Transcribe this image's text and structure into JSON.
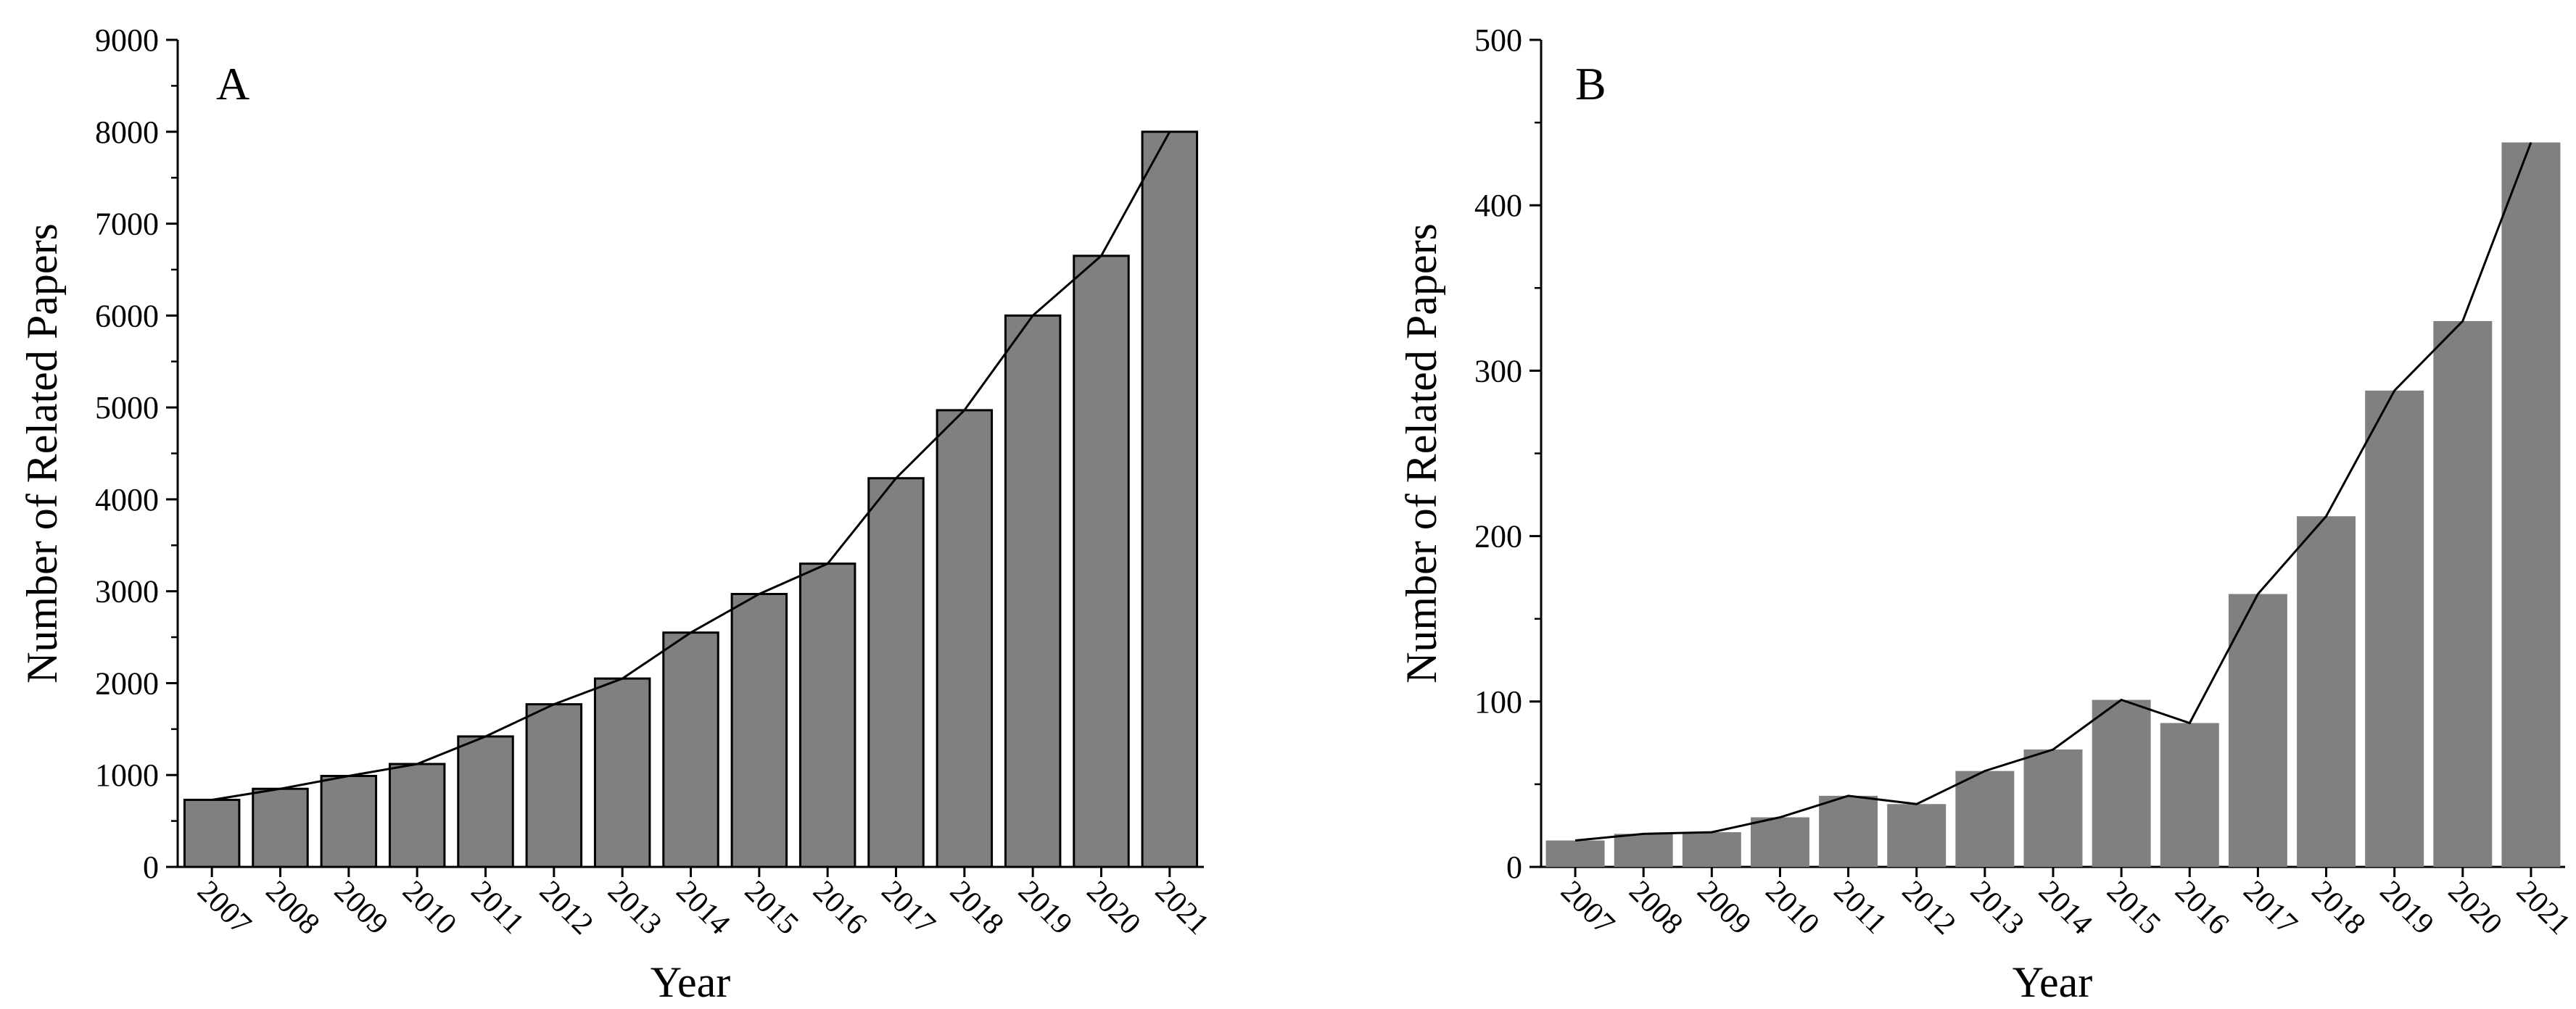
{
  "chart_data": [
    {
      "type": "bar",
      "panel_label": "A",
      "categories": [
        "2007",
        "2008",
        "2009",
        "2010",
        "2011",
        "2012",
        "2013",
        "2014",
        "2015",
        "2016",
        "2017",
        "2018",
        "2019",
        "2020",
        "2021"
      ],
      "values": [
        730,
        850,
        990,
        1120,
        1420,
        1770,
        2050,
        2550,
        2970,
        3300,
        4230,
        4970,
        6000,
        6650,
        8000
      ],
      "overlay_line": true,
      "xlabel": "Year",
      "ylabel": "Number of Related Papers",
      "ylim": [
        0,
        9000
      ],
      "yticks": [
        0,
        1000,
        2000,
        3000,
        4000,
        5000,
        6000,
        7000,
        8000,
        9000
      ],
      "bar_color": "#808080",
      "bar_edge_color": "#000000",
      "line_color": "#000000",
      "grid": false
    },
    {
      "type": "bar",
      "panel_label": "B",
      "categories": [
        "2007",
        "2008",
        "2009",
        "2010",
        "2011",
        "2012",
        "2013",
        "2014",
        "2015",
        "2016",
        "2017",
        "2018",
        "2019",
        "2020",
        "2021"
      ],
      "values": [
        16,
        20,
        21,
        30,
        43,
        38,
        58,
        71,
        101,
        87,
        165,
        212,
        288,
        330,
        438
      ],
      "overlay_line": true,
      "xlabel": "Year",
      "ylabel": "Number of Related Papers",
      "ylim": [
        0,
        500
      ],
      "yticks": [
        0,
        100,
        200,
        300,
        400,
        500
      ],
      "bar_color": "#808080",
      "bar_edge_color": "none",
      "line_color": "#000000",
      "grid": false
    }
  ]
}
